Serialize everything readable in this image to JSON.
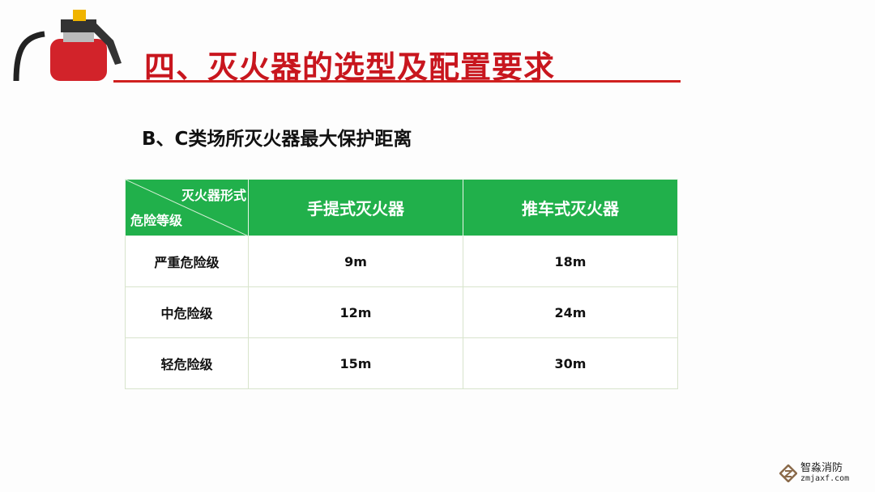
{
  "slide": {
    "title": "四、灭火器的选型及配置要求",
    "subtitle": "B、C类场所灭火器最大保护距离",
    "accent_color": "#c8161e",
    "header_color": "#21b04b"
  },
  "table": {
    "corner_top": "灭火器形式",
    "corner_bottom": "危险等级",
    "columns": [
      "手提式灭火器",
      "推车式灭火器"
    ],
    "rows": [
      {
        "level": "严重危险级",
        "values": [
          "9m",
          "18m"
        ]
      },
      {
        "level": "中危险级",
        "values": [
          "12m",
          "24m"
        ]
      },
      {
        "level": "轻危险级",
        "values": [
          "15m",
          "30m"
        ]
      }
    ]
  },
  "watermark": {
    "name": "智淼消防",
    "site": "zmjaxf.com"
  }
}
